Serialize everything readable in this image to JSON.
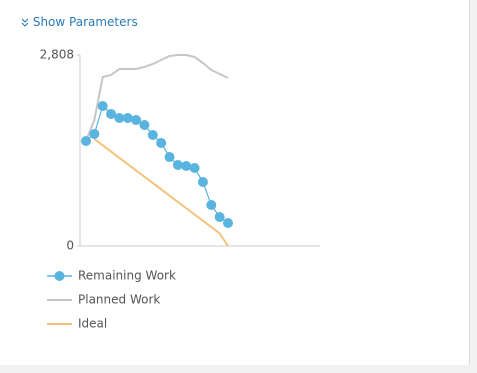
{
  "header": {
    "link": "Show Parameters"
  },
  "chart_data": {
    "type": "line",
    "categories": [
      null,
      null,
      null,
      null,
      null,
      null,
      null,
      null,
      null,
      null,
      null,
      null,
      null,
      null,
      null,
      null,
      null,
      null
    ],
    "series": [
      {
        "name": "Remaining Work",
        "color": "#5ab4e0",
        "markers": true,
        "values": [
          1544,
          1647,
          2058,
          1941,
          1882,
          1882,
          1852,
          1779,
          1632,
          1514,
          1308,
          1191,
          1176,
          1147,
          941,
          603,
          426,
          338
        ]
      },
      {
        "name": "Planned Work",
        "color": "#c6c6c6",
        "markers": false,
        "values": [
          1544,
          1852,
          2485,
          2514,
          2602,
          2602,
          2602,
          2632,
          2676,
          2735,
          2793,
          2808,
          2808,
          2779,
          2690,
          2588,
          2529,
          2470
        ]
      },
      {
        "name": "Ideal",
        "color": "#f5c27a",
        "markers": false,
        "values": [
          null,
          1573,
          1480,
          1388,
          1295,
          1203,
          1110,
          1018,
          925,
          833,
          740,
          648,
          555,
          463,
          370,
          278,
          185,
          0
        ]
      }
    ],
    "ylim": [
      0,
      2808
    ],
    "yticks": [
      {
        "value": 2808,
        "label": "2,808"
      },
      0
    ],
    "grid": false
  }
}
